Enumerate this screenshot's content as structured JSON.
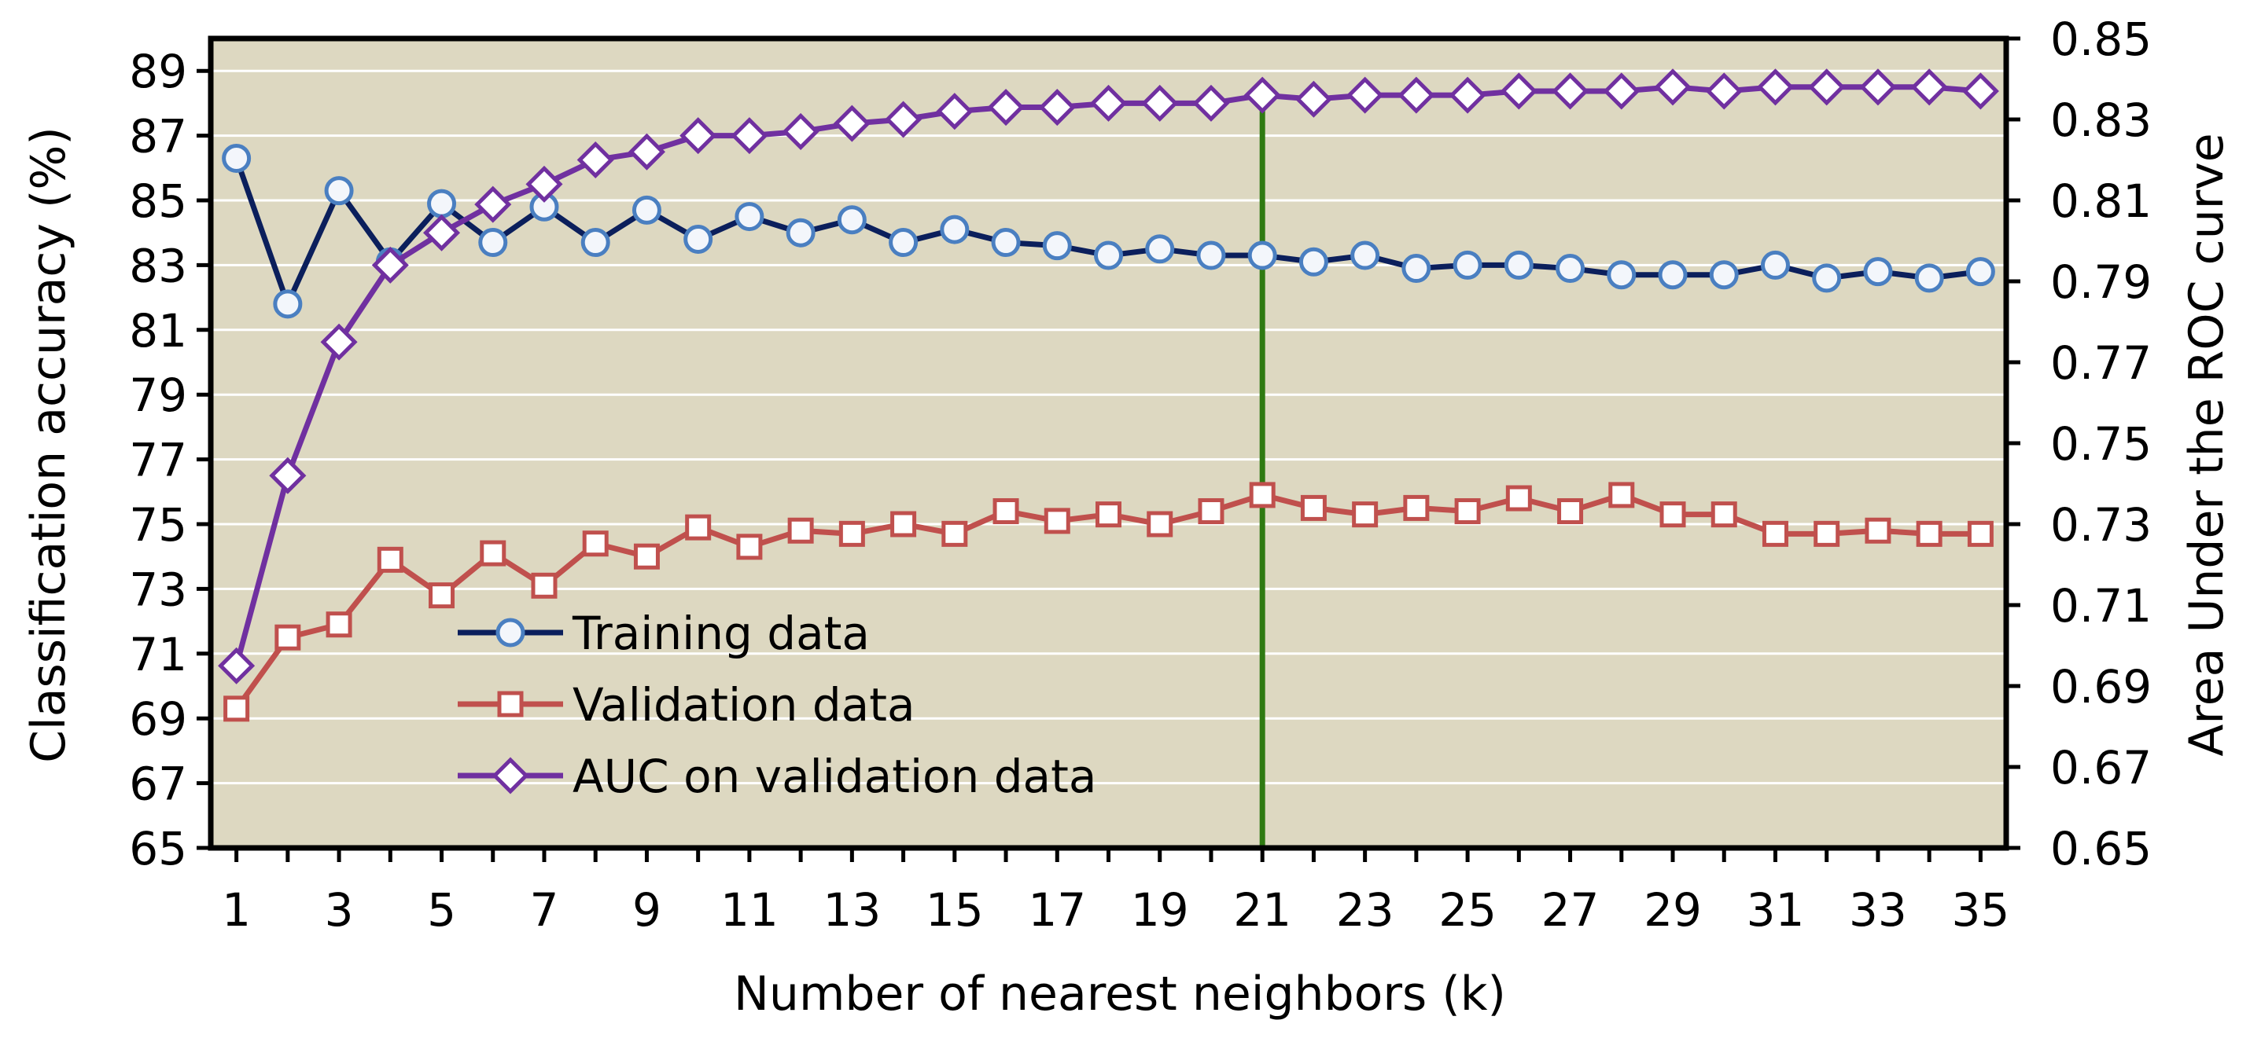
{
  "chart_data": {
    "type": "line",
    "x": [
      1,
      2,
      3,
      4,
      5,
      6,
      7,
      8,
      9,
      10,
      11,
      12,
      13,
      14,
      15,
      16,
      17,
      18,
      19,
      20,
      21,
      22,
      23,
      24,
      25,
      26,
      27,
      28,
      29,
      30,
      31,
      32,
      33,
      34,
      35
    ],
    "xlabel": "Number of nearest neighbors (k)",
    "ylabel": "Classification accuracy (%)",
    "y2label": "Area Under the ROC curve",
    "xlim": [
      0.5,
      35.5
    ],
    "x_ticks": [
      1,
      3,
      5,
      7,
      9,
      11,
      13,
      15,
      17,
      19,
      21,
      23,
      25,
      27,
      29,
      31,
      33,
      35
    ],
    "ylim": [
      65,
      90
    ],
    "y_ticks": [
      65,
      67,
      69,
      71,
      73,
      75,
      77,
      79,
      81,
      83,
      85,
      87,
      89
    ],
    "y2lim": [
      0.65,
      0.85
    ],
    "y2_ticks": [
      "0.65",
      "0.67",
      "0.69",
      "0.71",
      "0.73",
      "0.75",
      "0.77",
      "0.79",
      "0.81",
      "0.83",
      "0.85"
    ],
    "grid": true,
    "legend_position": "lower-left",
    "background": "#ddd8c1",
    "reference_line": {
      "x": 21,
      "color": "#2f7a12"
    },
    "series": [
      {
        "name": "Training data",
        "axis": "left",
        "marker": "circle",
        "color": "#0b1f5c",
        "marker_color": "#4a7fc1",
        "values": [
          86.3,
          81.8,
          85.3,
          83.1,
          84.9,
          83.7,
          84.8,
          83.7,
          84.7,
          83.8,
          84.5,
          84.0,
          84.4,
          83.7,
          84.1,
          83.7,
          83.6,
          83.3,
          83.5,
          83.3,
          83.3,
          83.1,
          83.3,
          82.9,
          83.0,
          83.0,
          82.9,
          82.7,
          82.7,
          82.7,
          83.0,
          82.6,
          82.8,
          82.6,
          82.8
        ]
      },
      {
        "name": "Validation data",
        "axis": "left",
        "marker": "square",
        "color": "#c0504d",
        "marker_color": "#c0504d",
        "values": [
          69.3,
          71.5,
          71.9,
          73.9,
          72.8,
          74.1,
          73.1,
          74.4,
          74.0,
          74.9,
          74.3,
          74.8,
          74.7,
          75.0,
          74.7,
          75.4,
          75.1,
          75.3,
          75.0,
          75.4,
          75.9,
          75.5,
          75.3,
          75.5,
          75.4,
          75.8,
          75.4,
          75.9,
          75.3,
          75.3,
          74.7,
          74.7,
          74.8,
          74.7,
          74.7
        ]
      },
      {
        "name": "AUC on validation data",
        "axis": "right",
        "marker": "diamond",
        "color": "#7030a0",
        "marker_color": "#7030a0",
        "values": [
          0.695,
          0.742,
          0.775,
          0.794,
          0.802,
          0.809,
          0.814,
          0.82,
          0.822,
          0.826,
          0.826,
          0.827,
          0.829,
          0.83,
          0.832,
          0.833,
          0.833,
          0.834,
          0.834,
          0.834,
          0.836,
          0.835,
          0.836,
          0.836,
          0.836,
          0.837,
          0.837,
          0.837,
          0.838,
          0.837,
          0.838,
          0.838,
          0.838,
          0.838,
          0.837
        ]
      }
    ]
  }
}
